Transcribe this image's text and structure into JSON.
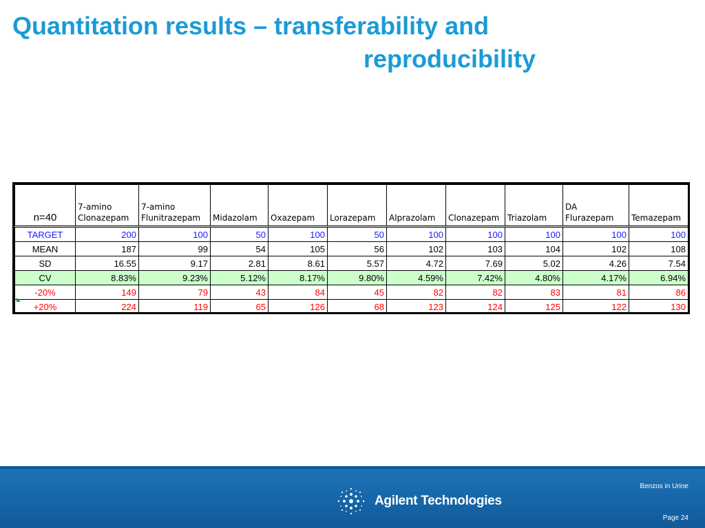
{
  "slide": {
    "title_line1": "Quantitation results – transferability and",
    "title_line2": "reproducibility"
  },
  "table": {
    "corner": "n=40",
    "columns": [
      "7-amino Clonazepam",
      "7-amino Flunitrazepam",
      "Midazolam",
      "Oxazepam",
      "Lorazepam",
      "Alprazolam",
      "Clonazepam",
      "Triazolam",
      "DA Flurazepam",
      "Temazepam"
    ],
    "rows": [
      {
        "label": "TARGET",
        "values": [
          "200",
          "100",
          "50",
          "100",
          "50",
          "100",
          "100",
          "100",
          "100",
          "100"
        ]
      },
      {
        "label": "MEAN",
        "values": [
          "187",
          "99",
          "54",
          "105",
          "56",
          "102",
          "103",
          "104",
          "102",
          "108"
        ]
      },
      {
        "label": "SD",
        "values": [
          "16.55",
          "9.17",
          "2.81",
          "8.61",
          "5.57",
          "4.72",
          "7.69",
          "5.02",
          "4.26",
          "7.54"
        ]
      },
      {
        "label": "CV",
        "values": [
          "8.83%",
          "9.23%",
          "5.12%",
          "8.17%",
          "9.80%",
          "4.59%",
          "7.42%",
          "4.80%",
          "4.17%",
          "6.94%"
        ]
      },
      {
        "label": "-20%",
        "values": [
          "149",
          "79",
          "43",
          "84",
          "45",
          "82",
          "82",
          "83",
          "81",
          "86"
        ]
      },
      {
        "label": "+20%",
        "values": [
          "224",
          "119",
          "65",
          "126",
          "68",
          "123",
          "124",
          "125",
          "122",
          "130"
        ]
      }
    ],
    "colors": {
      "target": "#1a1aff",
      "limits": "#ff0000",
      "cv_background": "#ccffcc"
    }
  },
  "footer": {
    "brand": "Agilent Technologies",
    "doc_name": "Benzos in  Urine",
    "page": "Page 24",
    "logo_icon": "agilent-spark-icon",
    "background": "#1565a7"
  },
  "theme": {
    "title_color": "#1a9bd6"
  }
}
